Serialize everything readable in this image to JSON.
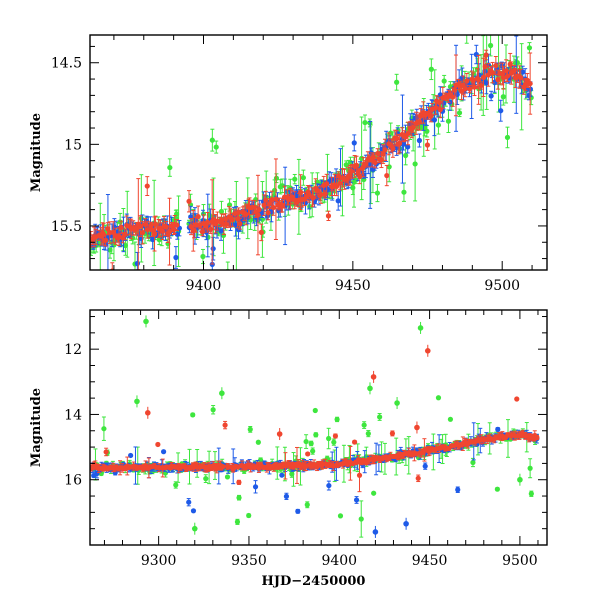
{
  "chart_data": [
    {
      "type": "scatter",
      "title": "",
      "xlabel": "",
      "ylabel": "Magnitude",
      "xlim": [
        9362,
        9515
      ],
      "ylim": [
        15.77,
        14.33
      ],
      "y_inverted": true,
      "x_ticks": [
        9400,
        9450,
        9500
      ],
      "y_ticks": [
        14.5,
        15,
        15.5
      ],
      "y_tick_labels": [
        "14.5",
        "15",
        "15.5"
      ],
      "trend_points": [
        [
          9362,
          15.58
        ],
        [
          9380,
          15.52
        ],
        [
          9392,
          15.52
        ],
        [
          9410,
          15.46
        ],
        [
          9425,
          15.36
        ],
        [
          9440,
          15.28
        ],
        [
          9452,
          15.16
        ],
        [
          9465,
          14.98
        ],
        [
          9475,
          14.82
        ],
        [
          9485,
          14.66
        ],
        [
          9495,
          14.56
        ],
        [
          9505,
          14.57
        ],
        [
          9515,
          14.75
        ]
      ],
      "gap": [
        9392,
        9395
      ],
      "series": [
        {
          "name": "green",
          "color": "#3ee63e",
          "scatter": 0.09,
          "outlier_rate": 0.16,
          "outlier_range": [
            -0.5,
            0.35
          ]
        },
        {
          "name": "blue",
          "color": "#1e5ae8",
          "scatter": 0.06,
          "outlier_rate": 0.08,
          "outlier_range": [
            -0.25,
            0.3
          ]
        },
        {
          "name": "red",
          "color": "#f04630",
          "scatter": 0.045,
          "outlier_rate": 0.04,
          "outlier_range": [
            -0.3,
            0.25
          ]
        }
      ]
    },
    {
      "type": "scatter",
      "title": "",
      "xlabel": "HJD−2450000",
      "ylabel": "Magnitude",
      "xlim": [
        9262,
        9515
      ],
      "ylim": [
        18.0,
        10.8
      ],
      "y_inverted": true,
      "x_ticks": [
        9300,
        9350,
        9400,
        9450,
        9500
      ],
      "y_ticks": [
        12,
        14,
        16
      ],
      "y_tick_labels": [
        "12",
        "14",
        "16"
      ],
      "trend_points": [
        [
          9262,
          15.62
        ],
        [
          9300,
          15.62
        ],
        [
          9350,
          15.6
        ],
        [
          9395,
          15.55
        ],
        [
          9430,
          15.3
        ],
        [
          9460,
          15.0
        ],
        [
          9485,
          14.7
        ],
        [
          9500,
          14.62
        ],
        [
          9515,
          14.78
        ]
      ],
      "gap": null,
      "series": [
        {
          "name": "green",
          "color": "#3ee63e",
          "scatter": 0.12,
          "outlier_rate": 0.18,
          "outlier_range": [
            -1.8,
            1.8
          ]
        },
        {
          "name": "blue",
          "color": "#1e5ae8",
          "scatter": 0.08,
          "outlier_rate": 0.08,
          "outlier_range": [
            -0.6,
            1.6
          ]
        },
        {
          "name": "red",
          "color": "#f04630",
          "scatter": 0.06,
          "outlier_rate": 0.03,
          "outlier_range": [
            -1.8,
            1.0
          ]
        }
      ],
      "extra_points": [
        {
          "series": "green",
          "x": 9293,
          "y": 11.15
        },
        {
          "series": "green",
          "x": 9445,
          "y": 11.35
        },
        {
          "series": "red",
          "x": 9449,
          "y": 12.05
        },
        {
          "series": "red",
          "x": 9419,
          "y": 12.85
        },
        {
          "series": "red",
          "x": 9294,
          "y": 13.95
        },
        {
          "series": "green",
          "x": 9288,
          "y": 13.6
        },
        {
          "series": "green",
          "x": 9417,
          "y": 13.2
        },
        {
          "series": "green",
          "x": 9335,
          "y": 13.35
        },
        {
          "series": "green",
          "x": 9432,
          "y": 13.65
        },
        {
          "series": "red",
          "x": 9443,
          "y": 14.4
        },
        {
          "series": "red",
          "x": 9367,
          "y": 14.6
        },
        {
          "series": "blue",
          "x": 9420,
          "y": 17.6
        },
        {
          "series": "blue",
          "x": 9437,
          "y": 17.35
        },
        {
          "series": "green",
          "x": 9320,
          "y": 17.5
        },
        {
          "series": "green",
          "x": 9500,
          "y": 16.0
        }
      ]
    }
  ]
}
